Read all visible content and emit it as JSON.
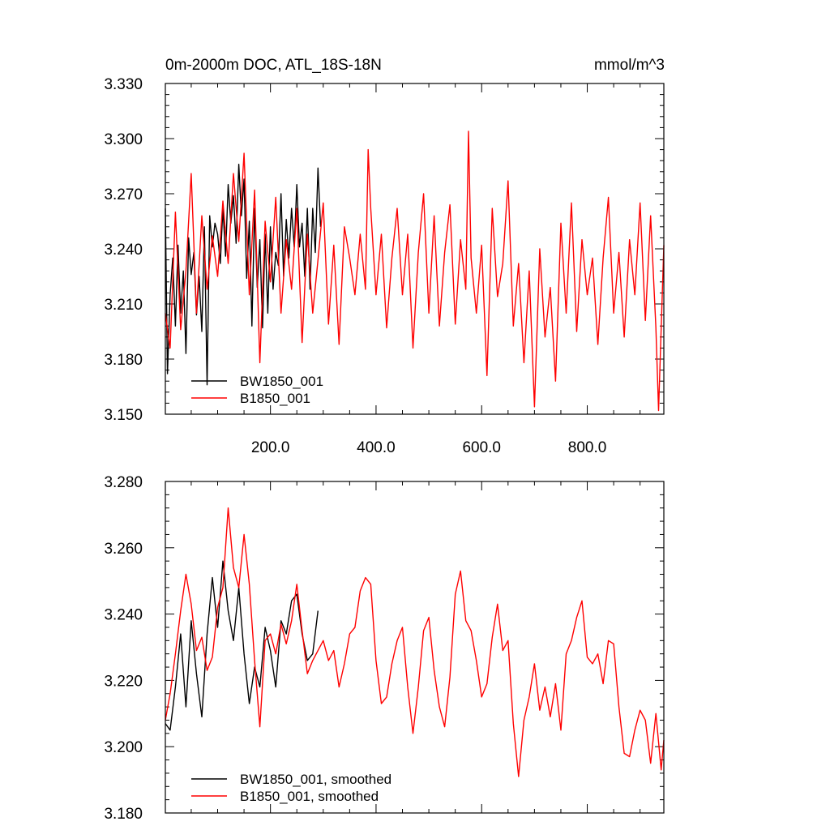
{
  "colors": {
    "series_black": "#000000",
    "series_red": "#ff0000",
    "axis": "#000000"
  },
  "chart_data": [
    {
      "type": "line",
      "title": "0m-2000m DOC, ATL_18S-18N",
      "units": "mmol/m^3",
      "xlim": [
        1,
        945
      ],
      "ylim": [
        3.15,
        3.33
      ],
      "xticks": [
        200,
        400,
        600,
        800
      ],
      "xtick_labels": [
        "200.0",
        "400.0",
        "600.0",
        "800.0"
      ],
      "yticks": [
        3.15,
        3.18,
        3.21,
        3.24,
        3.27,
        3.3,
        3.33
      ],
      "ytick_labels": [
        "3.150",
        "3.180",
        "3.210",
        "3.240",
        "3.270",
        "3.300",
        "3.330"
      ],
      "legend_position": "bottom-left",
      "series": [
        {
          "name": "BW1850_001",
          "color": "#000000",
          "x": [
            1,
            5,
            10,
            15,
            20,
            25,
            30,
            35,
            40,
            45,
            50,
            55,
            60,
            65,
            70,
            75,
            80,
            85,
            90,
            95,
            100,
            105,
            110,
            115,
            120,
            125,
            130,
            135,
            140,
            145,
            150,
            155,
            160,
            165,
            170,
            175,
            180,
            185,
            190,
            195,
            200,
            205,
            210,
            215,
            220,
            225,
            230,
            235,
            240,
            245,
            250,
            255,
            260,
            265,
            270,
            275,
            280,
            285,
            290,
            295
          ],
          "y": [
            3.262,
            3.172,
            3.215,
            3.235,
            3.198,
            3.242,
            3.205,
            3.228,
            3.183,
            3.246,
            3.226,
            3.238,
            3.204,
            3.225,
            3.195,
            3.252,
            3.166,
            3.258,
            3.241,
            3.254,
            3.248,
            3.232,
            3.262,
            3.236,
            3.275,
            3.254,
            3.269,
            3.243,
            3.286,
            3.258,
            3.278,
            3.224,
            3.255,
            3.198,
            3.262,
            3.219,
            3.245,
            3.197,
            3.248,
            3.205,
            3.252,
            3.218,
            3.238,
            3.231,
            3.27,
            3.225,
            3.256,
            3.235,
            3.262,
            3.241,
            3.275,
            3.241,
            3.254,
            3.225,
            3.262,
            3.218,
            3.262,
            3.238,
            3.284,
            3.252
          ]
        },
        {
          "name": "B1850_001",
          "color": "#ff0000",
          "x": [
            1,
            10,
            20,
            30,
            40,
            50,
            60,
            70,
            80,
            90,
            100,
            110,
            120,
            130,
            140,
            150,
            160,
            170,
            180,
            190,
            200,
            210,
            220,
            230,
            240,
            250,
            260,
            270,
            280,
            290,
            300,
            310,
            320,
            330,
            340,
            350,
            360,
            370,
            380,
            385,
            390,
            400,
            410,
            420,
            430,
            440,
            450,
            460,
            470,
            480,
            490,
            500,
            510,
            520,
            530,
            540,
            550,
            560,
            570,
            575,
            580,
            590,
            600,
            610,
            620,
            630,
            640,
            650,
            660,
            670,
            680,
            690,
            700,
            710,
            720,
            730,
            740,
            750,
            760,
            770,
            780,
            790,
            800,
            810,
            820,
            830,
            840,
            850,
            860,
            870,
            880,
            890,
            900,
            910,
            920,
            930,
            935,
            945
          ],
          "y": [
            3.205,
            3.186,
            3.26,
            3.196,
            3.228,
            3.281,
            3.205,
            3.258,
            3.218,
            3.247,
            3.225,
            3.266,
            3.232,
            3.281,
            3.244,
            3.292,
            3.215,
            3.272,
            3.178,
            3.255,
            3.222,
            3.268,
            3.205,
            3.245,
            3.218,
            3.262,
            3.189,
            3.248,
            3.205,
            3.234,
            3.265,
            3.199,
            3.242,
            3.188,
            3.252,
            3.235,
            3.215,
            3.248,
            3.218,
            3.294,
            3.262,
            3.215,
            3.248,
            3.197,
            3.235,
            3.262,
            3.215,
            3.248,
            3.186,
            3.238,
            3.27,
            3.205,
            3.258,
            3.198,
            3.238,
            3.264,
            3.199,
            3.245,
            3.218,
            3.304,
            3.235,
            3.205,
            3.242,
            3.171,
            3.262,
            3.214,
            3.232,
            3.277,
            3.198,
            3.232,
            3.178,
            3.228,
            3.154,
            3.24,
            3.192,
            3.219,
            3.168,
            3.254,
            3.205,
            3.265,
            3.195,
            3.245,
            3.215,
            3.235,
            3.188,
            3.235,
            3.268,
            3.205,
            3.238,
            3.192,
            3.245,
            3.215,
            3.265,
            3.201,
            3.258,
            3.197,
            3.152,
            3.242
          ]
        }
      ]
    },
    {
      "type": "line",
      "xlim": [
        1,
        945
      ],
      "ylim": [
        3.18,
        3.28
      ],
      "xticks": [
        200,
        400,
        600,
        800
      ],
      "yticks": [
        3.18,
        3.2,
        3.22,
        3.24,
        3.26,
        3.28
      ],
      "ytick_labels": [
        "3.180",
        "3.200",
        "3.220",
        "3.240",
        "3.260",
        "3.280"
      ],
      "legend_position": "bottom-left",
      "series": [
        {
          "name": "BW1850_001, smoothed",
          "color": "#000000",
          "x": [
            1,
            10,
            20,
            30,
            40,
            50,
            60,
            70,
            80,
            90,
            100,
            110,
            120,
            130,
            140,
            150,
            160,
            170,
            180,
            190,
            200,
            210,
            220,
            230,
            240,
            250,
            260,
            270,
            280,
            290
          ],
          "y": [
            3.207,
            3.205,
            3.218,
            3.234,
            3.212,
            3.238,
            3.222,
            3.209,
            3.234,
            3.251,
            3.236,
            3.256,
            3.241,
            3.232,
            3.248,
            3.228,
            3.213,
            3.224,
            3.218,
            3.236,
            3.229,
            3.218,
            3.238,
            3.234,
            3.244,
            3.246,
            3.234,
            3.226,
            3.228,
            3.241
          ]
        },
        {
          "name": "B1850_001, smoothed",
          "color": "#ff0000",
          "x": [
            1,
            10,
            20,
            30,
            40,
            50,
            60,
            70,
            80,
            90,
            100,
            110,
            120,
            130,
            140,
            150,
            160,
            170,
            180,
            190,
            200,
            210,
            220,
            230,
            240,
            250,
            260,
            270,
            280,
            290,
            300,
            310,
            320,
            330,
            340,
            350,
            360,
            370,
            380,
            390,
            400,
            410,
            420,
            430,
            440,
            450,
            460,
            470,
            480,
            490,
            500,
            510,
            520,
            530,
            540,
            550,
            560,
            570,
            580,
            590,
            600,
            610,
            620,
            630,
            640,
            650,
            660,
            670,
            680,
            690,
            700,
            710,
            720,
            730,
            740,
            750,
            760,
            770,
            780,
            790,
            800,
            810,
            820,
            830,
            840,
            850,
            860,
            870,
            880,
            890,
            900,
            910,
            920,
            930,
            940,
            945
          ],
          "y": [
            3.208,
            3.216,
            3.228,
            3.241,
            3.252,
            3.243,
            3.229,
            3.233,
            3.223,
            3.227,
            3.242,
            3.248,
            3.272,
            3.254,
            3.248,
            3.264,
            3.249,
            3.226,
            3.206,
            3.232,
            3.234,
            3.228,
            3.237,
            3.231,
            3.238,
            3.249,
            3.235,
            3.222,
            3.226,
            3.229,
            3.232,
            3.226,
            3.229,
            3.218,
            3.225,
            3.234,
            3.236,
            3.247,
            3.251,
            3.249,
            3.226,
            3.213,
            3.215,
            3.225,
            3.232,
            3.236,
            3.218,
            3.204,
            3.218,
            3.235,
            3.239,
            3.223,
            3.212,
            3.206,
            3.221,
            3.246,
            3.253,
            3.238,
            3.235,
            3.226,
            3.215,
            3.219,
            3.233,
            3.243,
            3.229,
            3.232,
            3.207,
            3.191,
            3.208,
            3.215,
            3.225,
            3.211,
            3.218,
            3.209,
            3.219,
            3.205,
            3.228,
            3.232,
            3.239,
            3.244,
            3.227,
            3.225,
            3.228,
            3.219,
            3.232,
            3.231,
            3.212,
            3.198,
            3.197,
            3.205,
            3.211,
            3.208,
            3.195,
            3.21,
            3.193,
            3.202
          ]
        }
      ]
    }
  ]
}
